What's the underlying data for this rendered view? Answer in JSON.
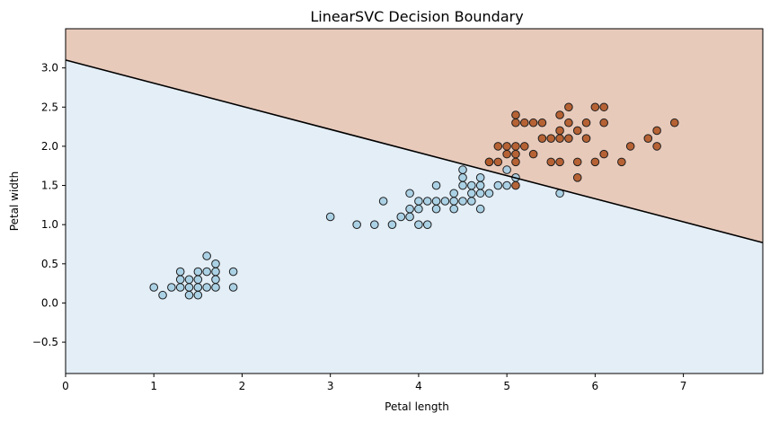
{
  "chart_data": {
    "type": "scatter",
    "title": "LinearSVC Decision Boundary",
    "xlabel": "Petal length",
    "ylabel": "Petal width",
    "xlim": [
      0,
      7.9
    ],
    "ylim": [
      -0.9,
      3.5
    ],
    "x_ticks": [
      0,
      1,
      2,
      3,
      4,
      5,
      6,
      7
    ],
    "x_tick_labels": [
      "0",
      "1",
      "2",
      "3",
      "4",
      "5",
      "6",
      "7"
    ],
    "y_ticks": [
      -0.5,
      0.0,
      0.5,
      1.0,
      1.5,
      2.0,
      2.5,
      3.0
    ],
    "y_tick_labels": [
      "−0.5",
      "0.0",
      "0.5",
      "1.0",
      "1.5",
      "2.0",
      "2.5",
      "3.0"
    ],
    "grid": false,
    "decision_boundary": {
      "y_at_x0": 3.1,
      "y_at_x_end": 0.77,
      "x_end": 7.9
    },
    "regions": [
      {
        "side": "above",
        "color": "#e8cabb"
      },
      {
        "side": "below",
        "color": "#e3eef7"
      }
    ],
    "series": [
      {
        "fill": "#a6cee3",
        "points": [
          [
            1.0,
            0.2
          ],
          [
            1.1,
            0.1
          ],
          [
            1.2,
            0.2
          ],
          [
            1.3,
            0.2
          ],
          [
            1.3,
            0.3
          ],
          [
            1.3,
            0.4
          ],
          [
            1.4,
            0.1
          ],
          [
            1.4,
            0.2
          ],
          [
            1.4,
            0.3
          ],
          [
            1.5,
            0.1
          ],
          [
            1.5,
            0.2
          ],
          [
            1.5,
            0.3
          ],
          [
            1.5,
            0.4
          ],
          [
            1.6,
            0.2
          ],
          [
            1.6,
            0.4
          ],
          [
            1.6,
            0.6
          ],
          [
            1.7,
            0.2
          ],
          [
            1.7,
            0.3
          ],
          [
            1.7,
            0.4
          ],
          [
            1.7,
            0.5
          ],
          [
            1.9,
            0.2
          ],
          [
            1.9,
            0.4
          ],
          [
            3.0,
            1.1
          ],
          [
            3.3,
            1.0
          ],
          [
            3.5,
            1.0
          ],
          [
            3.6,
            1.3
          ],
          [
            3.7,
            1.0
          ],
          [
            3.8,
            1.1
          ],
          [
            3.9,
            1.1
          ],
          [
            3.9,
            1.2
          ],
          [
            3.9,
            1.4
          ],
          [
            4.0,
            1.0
          ],
          [
            4.0,
            1.2
          ],
          [
            4.0,
            1.3
          ],
          [
            4.1,
            1.0
          ],
          [
            4.1,
            1.3
          ],
          [
            4.2,
            1.2
          ],
          [
            4.2,
            1.3
          ],
          [
            4.2,
            1.5
          ],
          [
            4.3,
            1.3
          ],
          [
            4.4,
            1.2
          ],
          [
            4.4,
            1.3
          ],
          [
            4.4,
            1.4
          ],
          [
            4.5,
            1.3
          ],
          [
            4.5,
            1.5
          ],
          [
            4.5,
            1.6
          ],
          [
            4.6,
            1.3
          ],
          [
            4.6,
            1.4
          ],
          [
            4.6,
            1.5
          ],
          [
            4.7,
            1.2
          ],
          [
            4.7,
            1.4
          ],
          [
            4.7,
            1.5
          ],
          [
            4.7,
            1.6
          ],
          [
            4.8,
            1.4
          ],
          [
            4.9,
            1.5
          ],
          [
            5.0,
            1.7
          ],
          [
            5.1,
            1.6
          ],
          [
            4.5,
            1.7
          ],
          [
            5.6,
            1.4
          ],
          [
            5.0,
            1.5
          ]
        ]
      },
      {
        "fill": "#b15928",
        "points": [
          [
            4.8,
            1.8
          ],
          [
            4.9,
            1.8
          ],
          [
            4.9,
            2.0
          ],
          [
            5.0,
            1.9
          ],
          [
            5.0,
            2.0
          ],
          [
            5.1,
            1.8
          ],
          [
            5.1,
            1.9
          ],
          [
            5.1,
            2.0
          ],
          [
            5.1,
            2.3
          ],
          [
            5.1,
            2.4
          ],
          [
            5.2,
            2.0
          ],
          [
            5.2,
            2.3
          ],
          [
            5.3,
            1.9
          ],
          [
            5.3,
            2.3
          ],
          [
            5.4,
            2.1
          ],
          [
            5.4,
            2.3
          ],
          [
            5.5,
            1.8
          ],
          [
            5.5,
            2.1
          ],
          [
            5.6,
            1.8
          ],
          [
            5.6,
            2.1
          ],
          [
            5.6,
            2.2
          ],
          [
            5.6,
            2.4
          ],
          [
            5.7,
            2.1
          ],
          [
            5.7,
            2.3
          ],
          [
            5.7,
            2.5
          ],
          [
            5.8,
            1.6
          ],
          [
            5.8,
            1.8
          ],
          [
            5.8,
            2.2
          ],
          [
            5.9,
            2.1
          ],
          [
            5.9,
            2.3
          ],
          [
            6.0,
            1.8
          ],
          [
            6.0,
            2.5
          ],
          [
            6.1,
            1.9
          ],
          [
            6.1,
            2.3
          ],
          [
            6.1,
            2.5
          ],
          [
            6.3,
            1.8
          ],
          [
            6.4,
            2.0
          ],
          [
            6.6,
            2.1
          ],
          [
            6.7,
            2.0
          ],
          [
            6.7,
            2.2
          ],
          [
            6.9,
            2.3
          ],
          [
            5.1,
            1.5
          ],
          [
            4.8,
            1.8
          ]
        ]
      }
    ]
  }
}
